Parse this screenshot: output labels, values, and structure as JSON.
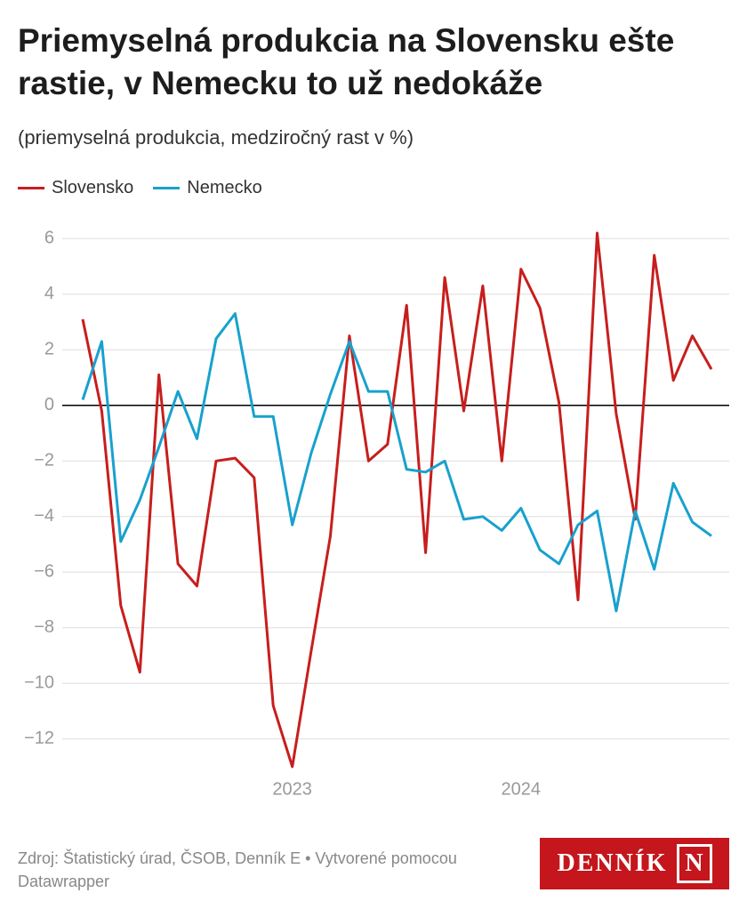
{
  "chart_data": {
    "type": "line",
    "title": "Priemyselná produkcia na Slovensku ešte rastie, v Nemecku to už nedokáže",
    "subtitle": "(priemyselná produkcia, medziročný rast v %)",
    "categories": [
      null,
      null,
      null,
      null,
      null,
      null,
      null,
      null,
      null,
      null,
      null,
      "2023",
      null,
      null,
      null,
      null,
      null,
      null,
      null,
      null,
      null,
      null,
      null,
      "2024",
      null,
      null,
      null,
      null,
      null,
      null,
      null,
      null,
      null,
      null
    ],
    "series": [
      {
        "name": "Slovensko",
        "color": "#c71e1d",
        "values": [
          3.1,
          -0.2,
          -7.2,
          -9.6,
          1.1,
          -5.7,
          -6.5,
          -2.0,
          -1.9,
          -2.6,
          -10.8,
          -13.0,
          -8.8,
          -4.7,
          2.5,
          -2.0,
          -1.4,
          3.6,
          -5.3,
          4.6,
          -0.2,
          4.3,
          -2.0,
          4.9,
          3.5,
          0.1,
          -7.0,
          6.2,
          -0.3,
          -4.1,
          5.4,
          0.9,
          2.5,
          1.3
        ]
      },
      {
        "name": "Nemecko",
        "color": "#18a1cd",
        "values": [
          0.2,
          2.3,
          -4.9,
          -3.4,
          -1.5,
          0.5,
          -1.2,
          2.4,
          3.3,
          -0.4,
          -0.4,
          -4.3,
          -1.7,
          0.4,
          2.3,
          0.5,
          0.5,
          -2.3,
          -2.4,
          -2.0,
          -4.1,
          -4.0,
          -4.5,
          -3.7,
          -5.2,
          -5.7,
          -4.3,
          -3.8,
          -7.4,
          -3.8,
          -5.9,
          -2.8,
          -4.2,
          -4.7
        ]
      }
    ],
    "ylim": [
      -13,
      6.2
    ],
    "yticks": [
      6,
      4,
      2,
      0,
      {
        "value": -2,
        "label": "−2"
      },
      {
        "value": -4,
        "label": "−4"
      },
      {
        "value": -6,
        "label": "−6"
      },
      {
        "value": -8,
        "label": "−8"
      },
      {
        "value": -10,
        "label": "−10"
      },
      {
        "value": -12,
        "label": "−12"
      }
    ],
    "grid": true,
    "source": "Zdroj: Štatistický úrad, ČSOB, Denník E • Vytvorené pomocou Datawrapper",
    "logo_text": "DENNÍK",
    "logo_mark": "N"
  }
}
